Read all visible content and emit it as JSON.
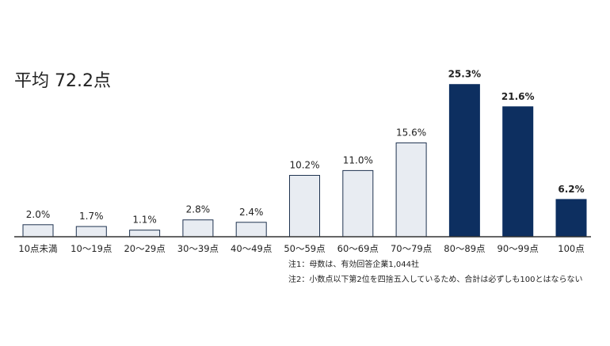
{
  "chart_data": {
    "type": "bar",
    "title": "平均 72.2点",
    "categories": [
      "10点未満",
      "10～19点",
      "20～29点",
      "30～39点",
      "40～49点",
      "50～59点",
      "60～69点",
      "70～79点",
      "80～89点",
      "90～99点",
      "100点"
    ],
    "values": [
      2.0,
      1.7,
      1.1,
      2.8,
      2.4,
      10.2,
      11.0,
      15.6,
      25.3,
      21.6,
      6.2
    ],
    "value_labels": [
      "2.0%",
      "1.7%",
      "1.1%",
      "2.8%",
      "2.4%",
      "10.2%",
      "11.0%",
      "15.6%",
      "25.3%",
      "21.6%",
      "6.2%"
    ],
    "highlighted": [
      false,
      false,
      false,
      false,
      false,
      false,
      false,
      false,
      true,
      true,
      true
    ],
    "unit": "%",
    "xlabel": "",
    "ylabel": "",
    "grid": false,
    "colors": {
      "normal_fill": "#e8ecf2",
      "normal_stroke": "#1f3350",
      "highlight_fill": "#0d2f60",
      "axis": "#333333",
      "text": "#222222"
    },
    "notes": [
      "注1：母数は、有効回答企業1,044社",
      "注2：小数点以下第2位を四捨五入しているため、合計は必ずしも100とはならない"
    ]
  }
}
